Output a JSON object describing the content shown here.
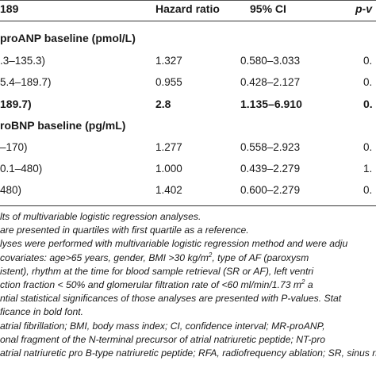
{
  "header": {
    "col_n": "189",
    "col_hr": "Hazard ratio",
    "col_ci": "95% CI",
    "col_p": "p-v"
  },
  "sections": [
    {
      "title": "proANP baseline (pmol/L)",
      "rows": [
        {
          "range": ".3–135.3)",
          "hr": "1.327",
          "ci": "0.580–3.033",
          "p": "0.",
          "bold": false
        },
        {
          "range": "5.4–189.7)",
          "hr": "0.955",
          "ci": "0.428–2.127",
          "p": "0.",
          "bold": false
        },
        {
          "range": "189.7)",
          "hr": "2.8",
          "ci": "1.135–6.910",
          "p": "0.",
          "bold": true
        }
      ]
    },
    {
      "title": "roBNP baseline (pg/mL)",
      "rows": [
        {
          "range": "–170)",
          "hr": "1.277",
          "ci": "0.558–2.923",
          "p": "0.",
          "bold": false
        },
        {
          "range": "0.1–480)",
          "hr": "1.000",
          "ci": "0.439–2.279",
          "p": "1.",
          "bold": false
        },
        {
          "range": "480)",
          "hr": "1.402",
          "ci": "0.600–2.279",
          "p": "0.",
          "bold": false
        }
      ]
    }
  ],
  "notes": {
    "l1": "lts of multivariable logistic regression analyses.",
    "l2": "are presented in quartiles with first quartile as a reference.",
    "l3": "lyses were performed with multivariable logistic regression method and were adju",
    "l4a": "covariates:  age>65 years, gender, BMI >30 kg/m",
    "l4sup": "2",
    "l4b": ", type of AF (paroxysm",
    "l5": "istent), rhythm at the time for blood sample retrieval (SR or AF), left ventri",
    "l6a": "ction fraction < 50% and glomerular filtration rate of <60 ml/min/1.73 m",
    "l6sup": "2",
    "l6b": " a",
    "l7": "ntial statistical significances of those analyses are presented with P-values. Stat",
    "l8": "ficance in bold font.",
    "l9": "atrial fibrillation; BMI, body mass index; CI, confidence interval; MR-proANP,",
    "l10": "onal fragment of the N-terminal precursor of atrial natriuretic peptide; NT-pro",
    "l11": "atrial natriuretic pro B-type natriuretic peptide; RFA, radiofrequency ablation; SR, sinus rh"
  }
}
